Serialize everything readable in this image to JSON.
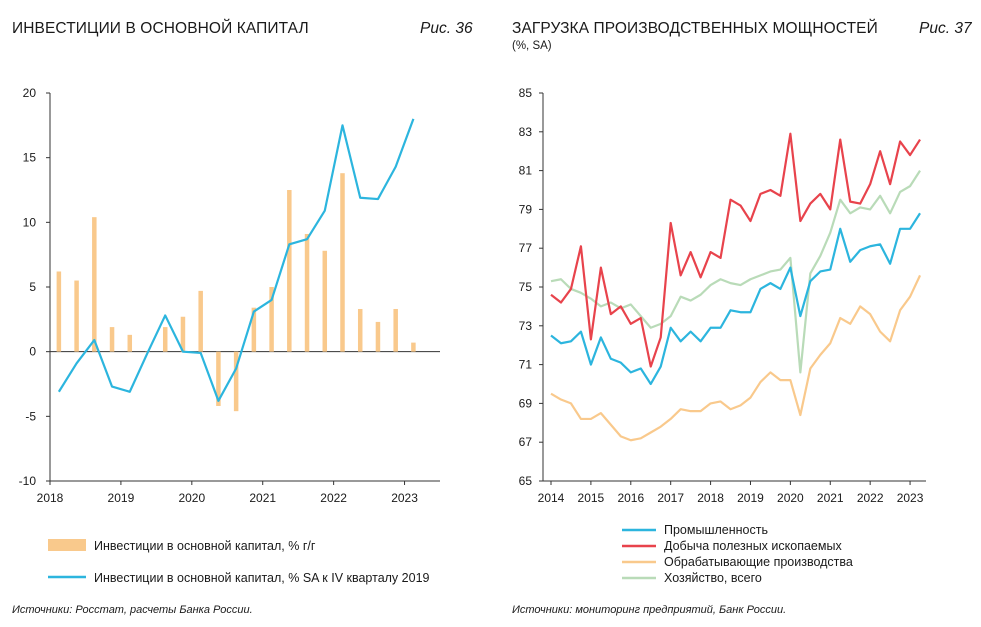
{
  "chart_data": [
    {
      "type": "bar+line",
      "title": "ИНВЕСТИЦИИ В ОСНОВНОЙ КАПИТАЛ",
      "figure_label": "Рис. 36",
      "source": "Источники: Росстат, расчеты Банка России.",
      "ylim": [
        -10,
        20
      ],
      "yticks": [
        -10,
        -5,
        0,
        5,
        10,
        15,
        20
      ],
      "xlim": [
        2018,
        2023.5
      ],
      "xticks": [
        2018,
        2019,
        2020,
        2021,
        2022,
        2023
      ],
      "xtick_labels": [
        "2018",
        "2019",
        "2020",
        "2021",
        "2022",
        "2023"
      ],
      "grid": false,
      "legend_position": "bottom",
      "colors": {
        "bars": "#f9c98c",
        "line": "#2cb5de"
      },
      "series": [
        {
          "name": "Инвестиции в основной капитал, % г/г",
          "kind": "bar",
          "x": [
            2018.125,
            2018.375,
            2018.625,
            2018.875,
            2019.125,
            2019.375,
            2019.625,
            2019.875,
            2020.125,
            2020.375,
            2020.625,
            2020.875,
            2021.125,
            2021.375,
            2021.625,
            2021.875,
            2022.125,
            2022.375,
            2022.625,
            2022.875,
            2023.125
          ],
          "values": [
            6.2,
            5.5,
            10.4,
            1.9,
            1.3,
            0.0,
            1.9,
            2.7,
            4.7,
            -4.2,
            -4.6,
            3.4,
            5.0,
            12.5,
            9.1,
            7.8,
            13.8,
            3.3,
            2.3,
            3.3,
            0.7
          ]
        },
        {
          "name": "Инвестиции в основной капитал, % SA к IV кварталу 2019",
          "kind": "line",
          "x": [
            2018.125,
            2018.375,
            2018.625,
            2018.875,
            2019.125,
            2019.375,
            2019.625,
            2019.875,
            2020.125,
            2020.375,
            2020.625,
            2020.875,
            2021.125,
            2021.375,
            2021.625,
            2021.875,
            2022.125,
            2022.375,
            2022.625,
            2022.875,
            2023.125
          ],
          "values": [
            -3.1,
            -0.9,
            0.9,
            -2.7,
            -3.1,
            -0.1,
            2.8,
            0.0,
            -0.1,
            -3.8,
            -1.3,
            3.1,
            4.0,
            8.3,
            8.7,
            10.9,
            17.5,
            11.9,
            11.8,
            14.3,
            18.0
          ]
        }
      ]
    },
    {
      "type": "line",
      "title": "ЗАГРУЗКА ПРОИЗВОДСТВЕННЫХ МОЩНОСТЕЙ",
      "subtitle": "(%, SA)",
      "figure_label": "Рис. 37",
      "source": "Источники: мониторинг предприятий, Банк России.",
      "ylim": [
        65,
        85
      ],
      "yticks": [
        65,
        67,
        69,
        71,
        73,
        75,
        77,
        79,
        81,
        83,
        85
      ],
      "xlim": [
        2014,
        2023.6
      ],
      "xticks": [
        2014,
        2015,
        2016,
        2017,
        2018,
        2019,
        2020,
        2021,
        2022,
        2023
      ],
      "xtick_labels": [
        "2014",
        "2015",
        "2016",
        "2017",
        "2018",
        "2019",
        "2020",
        "2021",
        "2022",
        "2023"
      ],
      "grid": false,
      "legend_position": "bottom",
      "series": [
        {
          "name": "Промышленность",
          "color": "#2cb5de",
          "x": [
            2014.0,
            2014.25,
            2014.5,
            2014.75,
            2015.0,
            2015.25,
            2015.5,
            2015.75,
            2016.0,
            2016.25,
            2016.5,
            2016.75,
            2017.0,
            2017.25,
            2017.5,
            2017.75,
            2018.0,
            2018.25,
            2018.5,
            2018.75,
            2019.0,
            2019.25,
            2019.5,
            2019.75,
            2020.0,
            2020.25,
            2020.5,
            2020.75,
            2021.0,
            2021.25,
            2021.5,
            2021.75,
            2022.0,
            2022.25,
            2022.5,
            2022.75,
            2023.0,
            2023.25
          ],
          "values": [
            72.5,
            72.1,
            72.2,
            72.7,
            71.0,
            72.4,
            71.3,
            71.1,
            70.6,
            70.8,
            70.0,
            70.9,
            72.9,
            72.2,
            72.7,
            72.2,
            72.9,
            72.9,
            73.8,
            73.7,
            73.7,
            74.9,
            75.2,
            74.9,
            76.0,
            73.5,
            75.3,
            75.8,
            75.9,
            78.0,
            76.3,
            76.9,
            77.1,
            77.2,
            76.2,
            78.0,
            78.0,
            78.8
          ]
        },
        {
          "name": "Добыча полезных ископаемых",
          "color": "#e8434c",
          "x": [
            2014.0,
            2014.25,
            2014.5,
            2014.75,
            2015.0,
            2015.25,
            2015.5,
            2015.75,
            2016.0,
            2016.25,
            2016.5,
            2016.75,
            2017.0,
            2017.25,
            2017.5,
            2017.75,
            2018.0,
            2018.25,
            2018.5,
            2018.75,
            2019.0,
            2019.25,
            2019.5,
            2019.75,
            2020.0,
            2020.25,
            2020.5,
            2020.75,
            2021.0,
            2021.25,
            2021.5,
            2021.75,
            2022.0,
            2022.25,
            2022.5,
            2022.75,
            2023.0,
            2023.25
          ],
          "values": [
            74.6,
            74.2,
            74.9,
            77.1,
            72.3,
            76.0,
            73.6,
            74.0,
            73.1,
            73.4,
            70.9,
            72.4,
            78.3,
            75.6,
            76.8,
            75.5,
            76.8,
            76.5,
            79.5,
            79.2,
            78.4,
            79.8,
            80.0,
            79.7,
            82.9,
            78.4,
            79.3,
            79.8,
            79.0,
            82.6,
            79.4,
            79.3,
            80.3,
            82.0,
            80.3,
            82.5,
            81.8,
            82.6
          ]
        },
        {
          "name": "Обрабатывающие производства",
          "color": "#f9c98c",
          "x": [
            2014.0,
            2014.25,
            2014.5,
            2014.75,
            2015.0,
            2015.25,
            2015.5,
            2015.75,
            2016.0,
            2016.25,
            2016.5,
            2016.75,
            2017.0,
            2017.25,
            2017.5,
            2017.75,
            2018.0,
            2018.25,
            2018.5,
            2018.75,
            2019.0,
            2019.25,
            2019.5,
            2019.75,
            2020.0,
            2020.25,
            2020.5,
            2020.75,
            2021.0,
            2021.25,
            2021.5,
            2021.75,
            2022.0,
            2022.25,
            2022.5,
            2022.75,
            2023.0,
            2023.25
          ],
          "values": [
            69.5,
            69.2,
            69.0,
            68.2,
            68.2,
            68.5,
            67.9,
            67.3,
            67.1,
            67.2,
            67.5,
            67.8,
            68.2,
            68.7,
            68.6,
            68.6,
            69.0,
            69.1,
            68.7,
            68.9,
            69.3,
            70.1,
            70.6,
            70.2,
            70.2,
            68.4,
            70.8,
            71.5,
            72.1,
            73.4,
            73.1,
            74.0,
            73.6,
            72.7,
            72.2,
            73.8,
            74.5,
            75.6
          ]
        },
        {
          "name": "Хозяйство, всего",
          "color": "#b9dbb8",
          "x": [
            2014.0,
            2014.25,
            2014.5,
            2014.75,
            2015.0,
            2015.25,
            2015.5,
            2015.75,
            2016.0,
            2016.25,
            2016.5,
            2016.75,
            2017.0,
            2017.25,
            2017.5,
            2017.75,
            2018.0,
            2018.25,
            2018.5,
            2018.75,
            2019.0,
            2019.25,
            2019.5,
            2019.75,
            2020.0,
            2020.25,
            2020.5,
            2020.75,
            2021.0,
            2021.25,
            2021.5,
            2021.75,
            2022.0,
            2022.25,
            2022.5,
            2022.75,
            2023.0,
            2023.25
          ],
          "values": [
            75.3,
            75.4,
            74.9,
            74.7,
            74.4,
            74.0,
            74.2,
            73.9,
            74.1,
            73.5,
            72.9,
            73.1,
            73.5,
            74.5,
            74.3,
            74.6,
            75.1,
            75.4,
            75.2,
            75.1,
            75.4,
            75.6,
            75.8,
            75.9,
            76.5,
            70.6,
            75.7,
            76.6,
            77.8,
            79.5,
            78.8,
            79.1,
            79.0,
            79.7,
            78.8,
            79.9,
            80.2,
            81.0
          ]
        }
      ]
    }
  ]
}
